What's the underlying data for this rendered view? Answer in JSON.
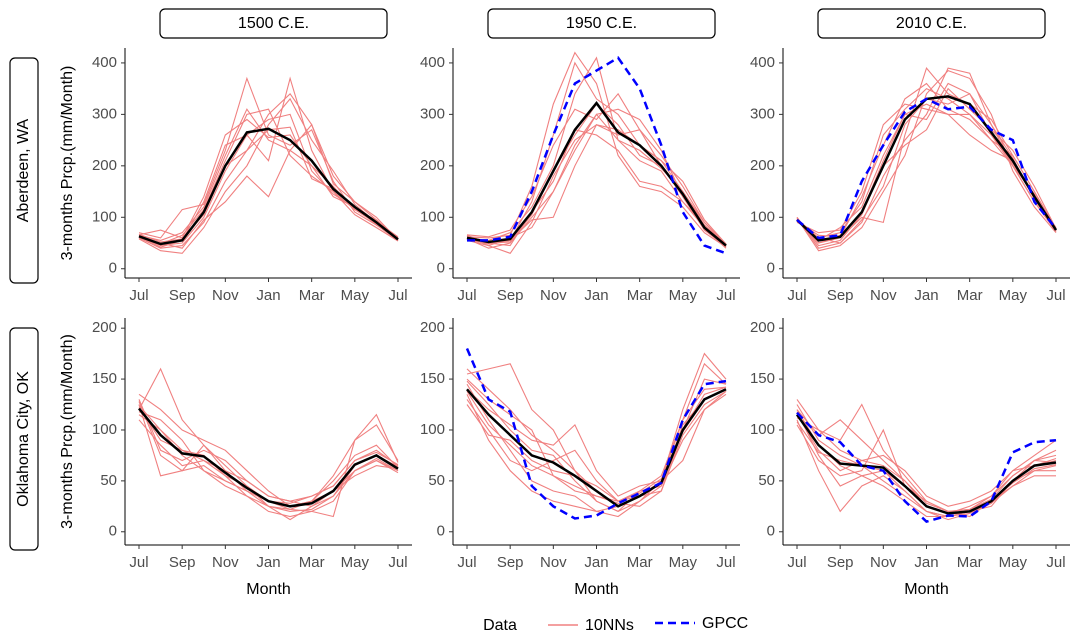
{
  "legend": {
    "title": "Data",
    "entries": [
      {
        "name": "10NNs",
        "color": "#f08080",
        "dash": false
      },
      {
        "name": "GPCC",
        "color": "#0000ff",
        "dash": true
      }
    ]
  },
  "mean_color": "#000000",
  "chart_data": [
    {
      "type": "line",
      "title": "1500 C.E.",
      "row_label": "Aberdeen, WA",
      "y_label": "3-months Prcp.(mm/Month)",
      "categories": [
        "Jul",
        null,
        "Sep",
        null,
        "Nov",
        null,
        "Jan",
        null,
        "Mar",
        null,
        "May",
        null,
        "Jul"
      ],
      "ylim": [
        -18,
        429
      ],
      "yticks": [
        0,
        100,
        200,
        300,
        400
      ],
      "nn": [
        [
          60,
          40,
          45,
          90,
          170,
          230,
          300,
          340,
          280,
          180,
          130,
          95,
          58
        ],
        [
          65,
          55,
          70,
          120,
          220,
          310,
          250,
          230,
          200,
          160,
          115,
          88,
          55
        ],
        [
          58,
          35,
          30,
          80,
          150,
          200,
          280,
          330,
          250,
          190,
          125,
          90,
          60
        ],
        [
          70,
          60,
          115,
          125,
          230,
          370,
          260,
          240,
          270,
          170,
          110,
          85,
          55
        ],
        [
          62,
          45,
          50,
          100,
          190,
          260,
          210,
          370,
          230,
          150,
          115,
          95,
          58
        ],
        [
          66,
          75,
          60,
          140,
          260,
          290,
          255,
          260,
          200,
          140,
          120,
          92,
          62
        ],
        [
          60,
          50,
          40,
          95,
          130,
          180,
          140,
          230,
          280,
          165,
          130,
          100,
          56
        ],
        [
          64,
          48,
          65,
          115,
          210,
          300,
          310,
          220,
          180,
          150,
          105,
          80,
          54
        ],
        [
          62,
          42,
          55,
          130,
          240,
          260,
          290,
          300,
          190,
          145,
          118,
          90,
          57
        ],
        [
          67,
          52,
          58,
          105,
          200,
          230,
          270,
          275,
          175,
          155,
          120,
          85,
          60
        ]
      ],
      "mean": [
        63,
        48,
        55,
        110,
        200,
        265,
        272,
        250,
        210,
        155,
        120,
        90,
        57
      ]
    },
    {
      "type": "line",
      "title": "1950 C.E.",
      "categories": [
        "Jul",
        null,
        "Sep",
        null,
        "Nov",
        null,
        "Jan",
        null,
        "Mar",
        null,
        "May",
        null,
        "Jul"
      ],
      "ylim": [
        -18,
        429
      ],
      "yticks": [
        0,
        100,
        200,
        300,
        400
      ],
      "nn": [
        [
          65,
          50,
          55,
          130,
          260,
          400,
          330,
          300,
          240,
          210,
          150,
          85,
          45
        ],
        [
          55,
          45,
          30,
          90,
          180,
          250,
          280,
          260,
          270,
          220,
          160,
          90,
          48
        ],
        [
          62,
          60,
          65,
          160,
          320,
          420,
          360,
          220,
          160,
          150,
          120,
          70,
          42
        ],
        [
          58,
          40,
          50,
          100,
          150,
          240,
          300,
          310,
          290,
          230,
          140,
          75,
          46
        ],
        [
          60,
          55,
          70,
          120,
          200,
          340,
          410,
          250,
          210,
          190,
          130,
          80,
          44
        ],
        [
          57,
          48,
          55,
          95,
          100,
          200,
          280,
          270,
          240,
          210,
          170,
          95,
          48
        ],
        [
          66,
          62,
          75,
          140,
          240,
          310,
          290,
          340,
          270,
          200,
          140,
          78,
          40
        ],
        [
          60,
          50,
          45,
          110,
          170,
          270,
          260,
          230,
          170,
          160,
          130,
          85,
          47
        ],
        [
          63,
          45,
          60,
          80,
          150,
          230,
          300,
          250,
          230,
          195,
          150,
          90,
          46
        ],
        [
          55,
          50,
          52,
          105,
          190,
          260,
          320,
          280,
          220,
          200,
          145,
          75,
          43
        ]
      ],
      "mean": [
        60,
        52,
        58,
        110,
        190,
        270,
        322,
        265,
        240,
        200,
        145,
        80,
        45
      ],
      "gpcc": [
        55,
        55,
        62,
        150,
        260,
        360,
        385,
        410,
        350,
        240,
        110,
        45,
        30
      ]
    },
    {
      "type": "line",
      "title": "2010 C.E.",
      "categories": [
        "Jul",
        null,
        "Sep",
        null,
        "Nov",
        null,
        "Jan",
        null,
        "Mar",
        null,
        "May",
        null,
        "Jul"
      ],
      "ylim": [
        -18,
        429
      ],
      "yticks": [
        0,
        100,
        200,
        300,
        400
      ],
      "nn": [
        [
          100,
          40,
          50,
          90,
          180,
          250,
          300,
          390,
          380,
          280,
          200,
          130,
          72
        ],
        [
          92,
          60,
          70,
          130,
          260,
          310,
          350,
          330,
          300,
          250,
          220,
          150,
          78
        ],
        [
          98,
          35,
          45,
          80,
          150,
          220,
          340,
          385,
          370,
          300,
          190,
          120,
          70
        ],
        [
          90,
          70,
          75,
          150,
          280,
          320,
          310,
          300,
          260,
          230,
          210,
          140,
          80
        ],
        [
          96,
          50,
          60,
          100,
          90,
          260,
          390,
          340,
          320,
          290,
          220,
          150,
          76
        ],
        [
          94,
          55,
          80,
          120,
          220,
          300,
          290,
          360,
          340,
          260,
          200,
          130,
          74
        ],
        [
          100,
          45,
          55,
          105,
          200,
          240,
          270,
          350,
          310,
          270,
          230,
          160,
          78
        ],
        [
          93,
          65,
          62,
          140,
          240,
          330,
          360,
          310,
          290,
          250,
          200,
          145,
          73
        ],
        [
          97,
          60,
          50,
          95,
          160,
          280,
          330,
          320,
          340,
          280,
          215,
          135,
          76
        ],
        [
          95,
          50,
          65,
          110,
          210,
          300,
          320,
          300,
          300,
          260,
          205,
          140,
          75
        ]
      ],
      "mean": [
        95,
        55,
        62,
        110,
        200,
        290,
        330,
        335,
        320,
        265,
        210,
        140,
        75
      ],
      "gpcc": [
        95,
        60,
        65,
        170,
        240,
        305,
        330,
        310,
        315,
        270,
        250,
        130,
        78
      ]
    },
    {
      "type": "line",
      "row_label": "Oklahoma City, OK",
      "y_label": "3-months Prcp.(mm/Month)",
      "x_label": "Month",
      "categories": [
        "Jul",
        null,
        "Sep",
        null,
        "Nov",
        null,
        "Jan",
        null,
        "Mar",
        null,
        "May",
        null,
        "Jul"
      ],
      "ylim": [
        -13,
        210
      ],
      "yticks": [
        0,
        50,
        100,
        150,
        200
      ],
      "nn": [
        [
          135,
          120,
          100,
          90,
          80,
          60,
          40,
          25,
          30,
          55,
          90,
          105,
          70
        ],
        [
          120,
          160,
          110,
          85,
          60,
          40,
          25,
          20,
          22,
          35,
          60,
          72,
          60
        ],
        [
          125,
          55,
          60,
          65,
          50,
          40,
          30,
          28,
          35,
          45,
          70,
          80,
          65
        ],
        [
          115,
          100,
          75,
          60,
          45,
          35,
          25,
          22,
          20,
          15,
          90,
          115,
          68
        ],
        [
          130,
          80,
          70,
          80,
          70,
          50,
          35,
          30,
          25,
          40,
          60,
          70,
          60
        ],
        [
          110,
          85,
          65,
          70,
          55,
          45,
          30,
          22,
          30,
          50,
          75,
          85,
          63
        ],
        [
          122,
          90,
          80,
          75,
          55,
          35,
          20,
          15,
          20,
          30,
          60,
          70,
          58
        ],
        [
          118,
          110,
          90,
          60,
          50,
          40,
          30,
          25,
          30,
          40,
          55,
          65,
          62
        ],
        [
          128,
          75,
          60,
          85,
          65,
          45,
          25,
          12,
          25,
          35,
          65,
          75,
          64
        ],
        [
          124,
          100,
          80,
          70,
          60,
          50,
          35,
          30,
          35,
          45,
          70,
          78,
          66
        ]
      ],
      "mean": [
        121,
        95,
        77,
        74,
        58,
        43,
        30,
        25,
        28,
        40,
        66,
        75,
        62
      ]
    },
    {
      "type": "line",
      "x_label": "Month",
      "categories": [
        "Jul",
        null,
        "Sep",
        null,
        "Nov",
        null,
        "Jan",
        null,
        "Mar",
        null,
        "May",
        null,
        "Jul"
      ],
      "ylim": [
        -13,
        210
      ],
      "yticks": [
        0,
        50,
        100,
        150,
        200
      ],
      "nn": [
        [
          155,
          160,
          165,
          120,
          100,
          60,
          30,
          20,
          40,
          55,
          110,
          165,
          145
        ],
        [
          145,
          110,
          80,
          50,
          40,
          35,
          20,
          15,
          30,
          50,
          120,
          175,
          150
        ],
        [
          130,
          100,
          70,
          60,
          70,
          80,
          50,
          30,
          40,
          45,
          90,
          120,
          138
        ],
        [
          150,
          130,
          115,
          100,
          55,
          40,
          35,
          28,
          25,
          40,
          100,
          150,
          145
        ],
        [
          135,
          90,
          60,
          40,
          30,
          25,
          20,
          25,
          35,
          50,
          110,
          140,
          142
        ],
        [
          140,
          120,
          105,
          90,
          85,
          105,
          60,
          35,
          45,
          50,
          70,
          120,
          135
        ],
        [
          148,
          125,
          100,
          80,
          75,
          50,
          30,
          20,
          30,
          45,
          105,
          130,
          140
        ],
        [
          125,
          95,
          90,
          70,
          60,
          55,
          45,
          30,
          35,
          40,
          95,
          125,
          138
        ],
        [
          160,
          140,
          120,
          95,
          80,
          60,
          40,
          25,
          35,
          48,
          100,
          135,
          142
        ],
        [
          138,
          105,
          85,
          65,
          55,
          45,
          35,
          30,
          38,
          52,
          98,
          130,
          140
        ]
      ],
      "mean": [
        140,
        115,
        95,
        75,
        68,
        55,
        40,
        25,
        35,
        48,
        100,
        130,
        140
      ],
      "gpcc": [
        180,
        130,
        118,
        45,
        25,
        13,
        16,
        28,
        38,
        48,
        110,
        145,
        148
      ]
    },
    {
      "type": "line",
      "x_label": "Month",
      "categories": [
        "Jul",
        null,
        "Sep",
        null,
        "Nov",
        null,
        "Jan",
        null,
        "Mar",
        null,
        "May",
        null,
        "Jul"
      ],
      "ylim": [
        -13,
        210
      ],
      "yticks": [
        0,
        50,
        100,
        150,
        200
      ],
      "nn": [
        [
          130,
          100,
          90,
          125,
          80,
          55,
          30,
          20,
          22,
          35,
          60,
          75,
          90
        ],
        [
          110,
          60,
          20,
          45,
          55,
          40,
          20,
          15,
          18,
          28,
          50,
          65,
          70
        ],
        [
          120,
          95,
          110,
          90,
          70,
          50,
          25,
          18,
          25,
          35,
          55,
          70,
          75
        ],
        [
          105,
          70,
          55,
          60,
          100,
          45,
          30,
          20,
          15,
          30,
          45,
          60,
          65
        ],
        [
          125,
          90,
          75,
          65,
          50,
          35,
          20,
          15,
          20,
          25,
          50,
          60,
          60
        ],
        [
          115,
          80,
          60,
          70,
          75,
          60,
          35,
          25,
          30,
          40,
          60,
          65,
          72
        ],
        [
          118,
          75,
          45,
          55,
          60,
          40,
          20,
          12,
          18,
          28,
          45,
          55,
          55
        ],
        [
          112,
          100,
          80,
          70,
          65,
          50,
          28,
          20,
          22,
          32,
          55,
          70,
          68
        ],
        [
          120,
          85,
          65,
          55,
          45,
          30,
          15,
          15,
          20,
          30,
          50,
          70,
          80
        ],
        [
          108,
          78,
          70,
          65,
          60,
          45,
          25,
          18,
          20,
          30,
          48,
          62,
          66
        ]
      ],
      "mean": [
        115,
        85,
        67,
        65,
        63,
        45,
        25,
        18,
        20,
        30,
        50,
        65,
        68
      ],
      "gpcc": [
        117,
        95,
        88,
        65,
        60,
        30,
        10,
        16,
        15,
        30,
        78,
        88,
        90
      ]
    }
  ]
}
